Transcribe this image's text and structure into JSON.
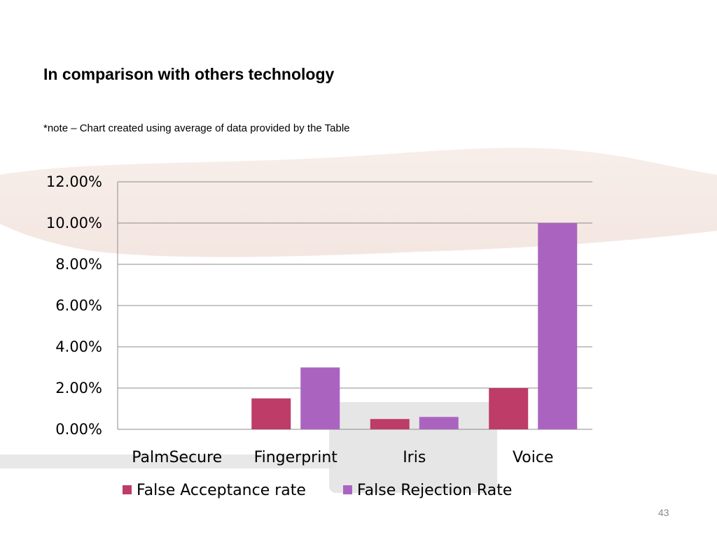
{
  "slide": {
    "title": "In comparison with others technology",
    "note": "*note – Chart created using average of data provided by the Table",
    "page_number": "43"
  },
  "colors": {
    "false_acceptance": "#bd3c68",
    "false_rejection": "#aa64c0",
    "gridline": "#8c8c8c"
  },
  "chart_data": {
    "type": "bar",
    "categories": [
      "PalmSecure",
      "Fingerprint",
      "Iris",
      "Voice"
    ],
    "series": [
      {
        "name": "False Acceptance rate",
        "values": [
          0.0,
          1.5,
          0.5,
          2.0
        ]
      },
      {
        "name": "False Rejection Rate",
        "values": [
          0.0,
          3.0,
          0.6,
          10.0
        ]
      }
    ],
    "ylim": [
      0,
      12
    ],
    "yticks": [
      "0.00%",
      "2.00%",
      "4.00%",
      "6.00%",
      "8.00%",
      "10.00%",
      "12.00%"
    ],
    "grid": true,
    "legend": "bottom"
  }
}
